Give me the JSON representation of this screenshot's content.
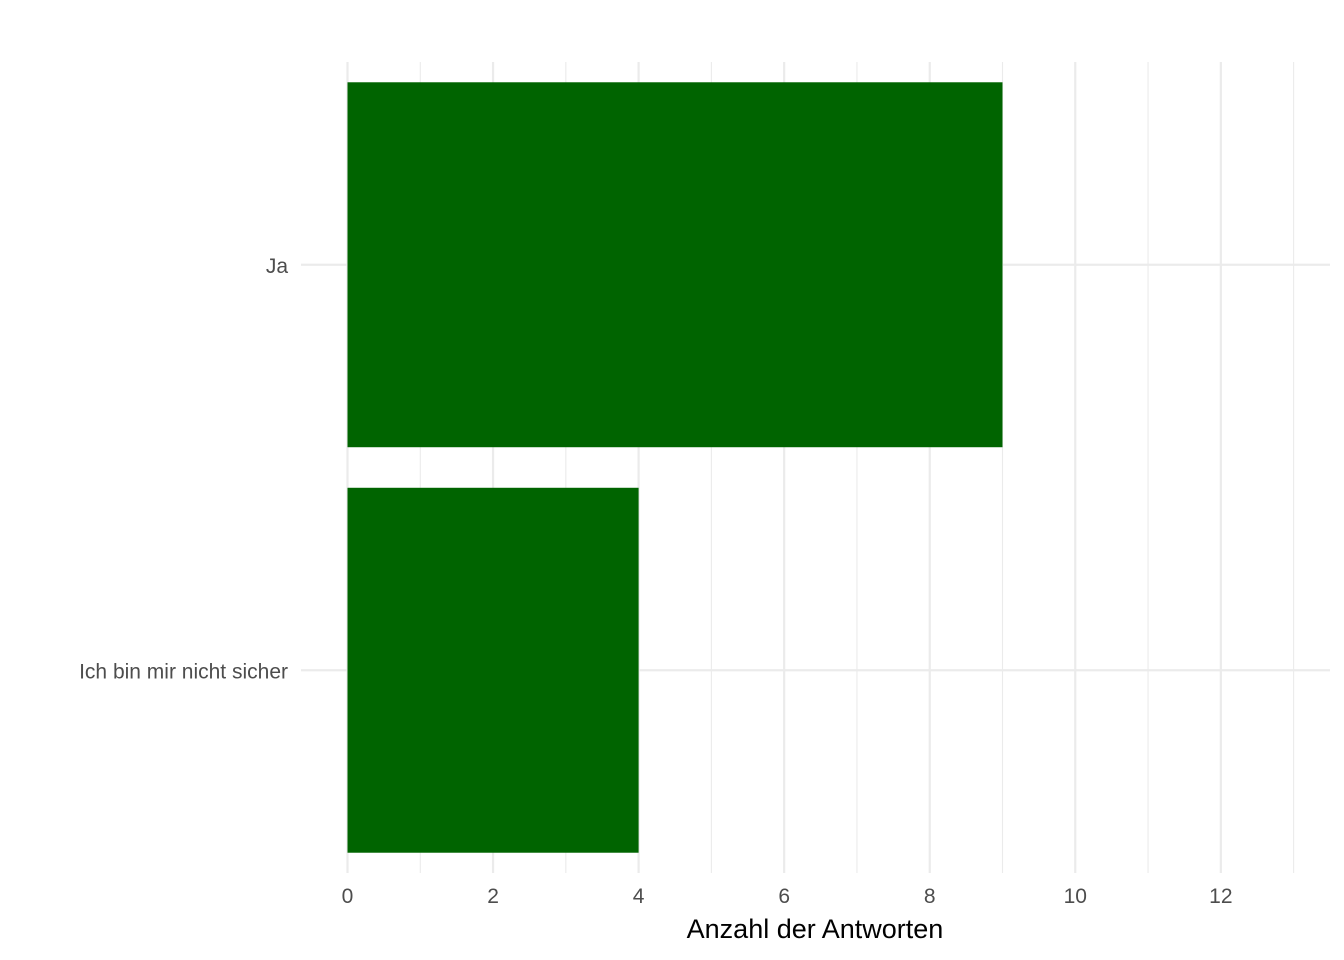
{
  "chart_data": {
    "type": "bar",
    "orientation": "horizontal",
    "categories": [
      "Ja",
      "Ich bin mir nicht sicher"
    ],
    "values": [
      9,
      4
    ],
    "title": "",
    "xlabel": "Anzahl der Antworten",
    "ylabel": "",
    "xlim": [
      0,
      13.5
    ],
    "x_ticks": [
      0,
      2,
      4,
      6,
      8,
      10,
      12
    ],
    "grid": true,
    "legend": "none",
    "colors": {
      "bar": "#006400",
      "grid": "#ebebeb",
      "tick_text": "#4d4d4d",
      "title_text": "#000000"
    }
  }
}
